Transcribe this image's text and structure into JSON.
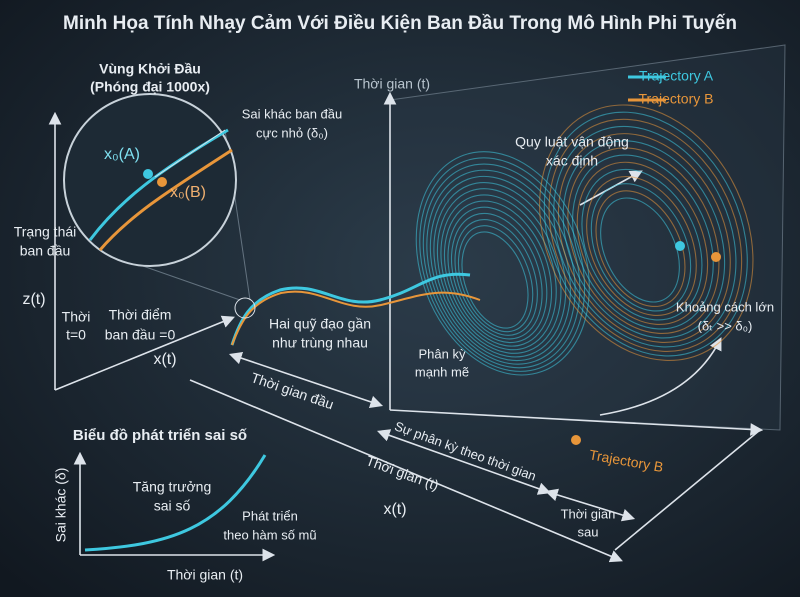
{
  "title": "Minh Họa Tính Nhạy Cảm Với Điều Kiện Ban Đầu Trong Mô Hình Phi Tuyến",
  "inset": {
    "title": [
      "Vùng Khởi Đầu",
      "(Phóng đại 1000x)"
    ],
    "delta_note": [
      "Sai khác ban đầu",
      "cực nhỏ (δ₀)"
    ],
    "point_a": "x₀(A)",
    "point_b": "x₀(B)",
    "initial_state": [
      "Trạng thái",
      "ban đầu"
    ]
  },
  "left_axes": {
    "z_label": "z(t)",
    "x_label": "x(t)",
    "t0": [
      "Thời",
      "t=0"
    ],
    "t0_note": [
      "Thời điểm",
      "ban đầu =0"
    ]
  },
  "main": {
    "time_axis": "Thời gian (t)",
    "legend": [
      {
        "name": "Trajectory A",
        "color": "#3ec8e0"
      },
      {
        "name": "Trajectory B",
        "color": "#e8963a"
      }
    ],
    "deterministic": [
      "Quy luật vận động",
      "xác định"
    ],
    "near": [
      "Hai quỹ đạo gần",
      "như trùng nhau"
    ],
    "diverge": [
      "Phân kỳ",
      "mạnh mẽ"
    ],
    "far": [
      "Khoảng cách lớn",
      "(δₜ >> δ₀)"
    ],
    "early": "Thời gian đầu",
    "divergence": "Sự phân kỳ theo thời gian",
    "time_axis_bottom": "Thời gian (t)",
    "x_label": "x(t)",
    "late": [
      "Thời gian",
      "sau"
    ],
    "trajectory_b": "Trajectory B"
  },
  "error_chart": {
    "title": "Biểu đồ phát triển sai số",
    "y_label": "Sai khác (δ)",
    "growth": [
      "Tăng trưởng",
      "sai số"
    ],
    "exponential": [
      "Phát triển",
      "theo hàm số mũ"
    ],
    "x_label": "Thời gian (t)"
  }
}
